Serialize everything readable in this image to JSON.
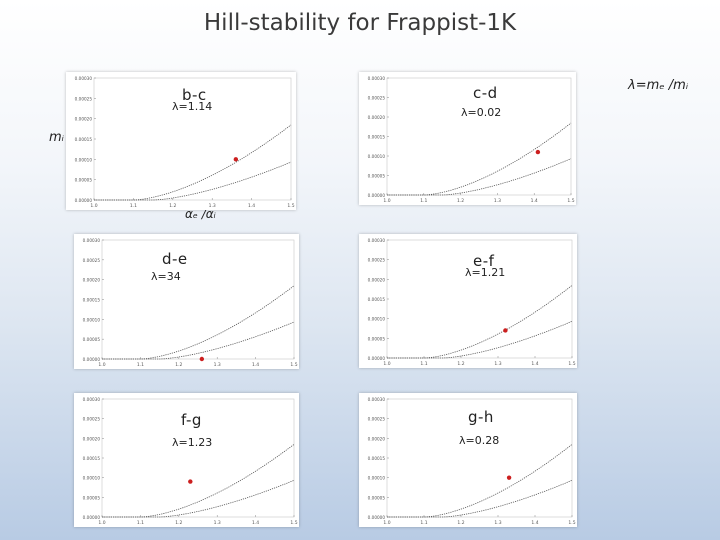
{
  "title": "Hill-stability for Frappist-1K",
  "lambda_definition": "λ=mₑ /mᵢ",
  "y_axis_label": "mᵢ",
  "x_axis_label": "αₑ /αᵢ",
  "colors": {
    "point": "#cc1f1f",
    "curve": "#444444",
    "panel_border": "#b0b0b0"
  },
  "chart_data": [
    {
      "type": "scatter",
      "pair": "b-c",
      "lambda": "λ=1.14",
      "xlim": [
        1.0,
        1.5
      ],
      "x_ticks": [
        "1.0",
        "1.1",
        "1.2",
        "1.3",
        "1.4",
        "1.5"
      ],
      "y_ticks": [
        "0.00030",
        "0.00025",
        "0.00020",
        "0.00015",
        "0.00010",
        "0.00005",
        "0.00000"
      ],
      "planet_point": {
        "x": 1.36,
        "y": 0.0001
      }
    },
    {
      "type": "scatter",
      "pair": "c-d",
      "lambda": "λ=0.02",
      "xlim": [
        1.0,
        1.5
      ],
      "x_ticks": [
        "1.0",
        "1.1",
        "1.2",
        "1.3",
        "1.4",
        "1.5"
      ],
      "y_ticks": [
        "0.00030",
        "0.00025",
        "0.00020",
        "0.00015",
        "0.00010",
        "0.00005",
        "0.00000"
      ],
      "planet_point": {
        "x": 1.41,
        "y": 0.00011
      }
    },
    {
      "type": "scatter",
      "pair": "d-e",
      "lambda": "λ=34",
      "xlim": [
        1.0,
        1.5
      ],
      "x_ticks": [
        "1.0",
        "1.1",
        "1.2",
        "1.3",
        "1.4",
        "1.5"
      ],
      "y_ticks": [
        "0.00030",
        "0.00025",
        "0.00020",
        "0.00015",
        "0.00010",
        "0.00005",
        "0.00000"
      ],
      "planet_point": {
        "x": 1.26,
        "y": 0.0
      }
    },
    {
      "type": "scatter",
      "pair": "e-f",
      "lambda": "λ=1.21",
      "xlim": [
        1.0,
        1.5
      ],
      "x_ticks": [
        "1.0",
        "1.1",
        "1.2",
        "1.3",
        "1.4",
        "1.5"
      ],
      "y_ticks": [
        "0.00030",
        "0.00025",
        "0.00020",
        "0.00015",
        "0.00010",
        "0.00005",
        "0.00000"
      ],
      "planet_point": {
        "x": 1.32,
        "y": 7e-05
      }
    },
    {
      "type": "scatter",
      "pair": "f-g",
      "lambda": "λ=1.23",
      "xlim": [
        1.0,
        1.5
      ],
      "x_ticks": [
        "1.0",
        "1.1",
        "1.2",
        "1.3",
        "1.4",
        "1.5"
      ],
      "y_ticks": [
        "0.00030",
        "0.00025",
        "0.00020",
        "0.00015",
        "0.00010",
        "0.00005",
        "0.00000"
      ],
      "planet_point": {
        "x": 1.23,
        "y": 9e-05
      }
    },
    {
      "type": "scatter",
      "pair": "g-h",
      "lambda": "λ=0.28",
      "xlim": [
        1.0,
        1.5
      ],
      "x_ticks": [
        "1.0",
        "1.1",
        "1.2",
        "1.3",
        "1.4",
        "1.5"
      ],
      "y_ticks": [
        "0.00030",
        "0.00025",
        "0.00020",
        "0.00015",
        "0.00010",
        "0.00005",
        "0.00000"
      ],
      "planet_point": {
        "x": 1.33,
        "y": 0.0001
      }
    }
  ]
}
